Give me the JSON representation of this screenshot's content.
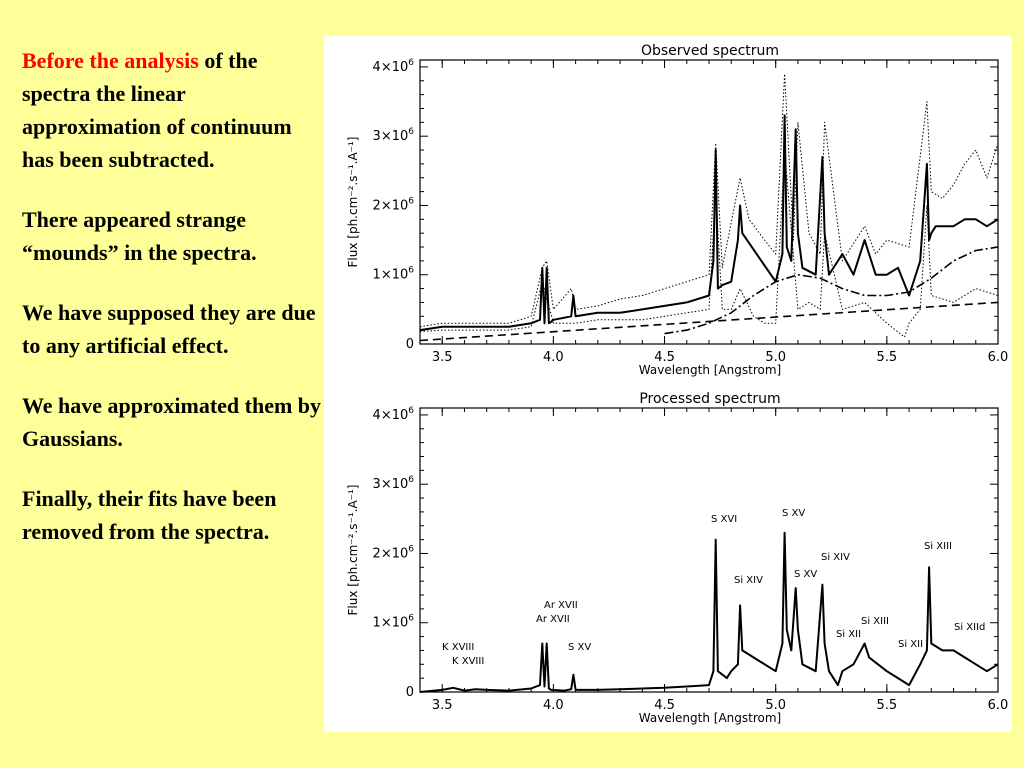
{
  "text": {
    "p1_red": "Before the analysis",
    "p1_rest": " of the spectra the linear approximation of continuum has been subtracted.",
    "p2": "There appeared strange “mounds” in the spectra.",
    "p3": "We have supposed they are due to any artificial effect.",
    "p4": "We have approximated them by Gaussians.",
    "p5": "Finally, their fits have been removed from the spectra."
  },
  "colors": {
    "background": "#ffff99",
    "highlight": "#ff0000",
    "panel": "#ffffff"
  },
  "chart_data": [
    {
      "type": "line",
      "title": "Observed spectrum",
      "xlabel": "Wavelength [Angstrom]",
      "ylabel": "Flux [ph.cm⁻².s⁻¹.A⁻¹]",
      "xlim": [
        3.4,
        6.0
      ],
      "ylim": [
        0,
        4100000
      ],
      "xticks": [
        "3.5",
        "4.0",
        "4.5",
        "5.0",
        "5.5",
        "6.0"
      ],
      "yticks": [
        {
          "base": "0",
          "exp": ""
        },
        {
          "base": "1×10",
          "exp": "6"
        },
        {
          "base": "2×10",
          "exp": "6"
        },
        {
          "base": "3×10",
          "exp": "6"
        },
        {
          "base": "4×10",
          "exp": "6"
        }
      ],
      "grid": false,
      "series": [
        {
          "style": "solid",
          "x": [
            3.4,
            3.5,
            3.6,
            3.7,
            3.8,
            3.9,
            3.94,
            3.95,
            3.96,
            3.97,
            3.98,
            3.99,
            4.0,
            4.05,
            4.08,
            4.09,
            4.1,
            4.2,
            4.3,
            4.4,
            4.5,
            4.6,
            4.7,
            4.72,
            4.73,
            4.74,
            4.76,
            4.8,
            4.83,
            4.84,
            4.85,
            5.0,
            5.03,
            5.04,
            5.05,
            5.07,
            5.09,
            5.1,
            5.12,
            5.18,
            5.21,
            5.22,
            5.24,
            5.3,
            5.35,
            5.4,
            5.45,
            5.5,
            5.55,
            5.6,
            5.65,
            5.68,
            5.69,
            5.7,
            5.72,
            5.8,
            5.85,
            5.9,
            5.95,
            6.0
          ],
          "y": [
            200000,
            250000,
            250000,
            250000,
            250000,
            300000,
            350000,
            1100000,
            300000,
            1100000,
            300000,
            320000,
            350000,
            380000,
            400000,
            700000,
            400000,
            450000,
            450000,
            500000,
            550000,
            600000,
            700000,
            1200000,
            2800000,
            800000,
            850000,
            900000,
            1500000,
            2000000,
            1600000,
            900000,
            1300000,
            3300000,
            1400000,
            1200000,
            3100000,
            1600000,
            1100000,
            1000000,
            2700000,
            1600000,
            1000000,
            1300000,
            1000000,
            1500000,
            1000000,
            1000000,
            1100000,
            700000,
            1200000,
            2600000,
            1500000,
            1600000,
            1700000,
            1700000,
            1800000,
            1800000,
            1700000,
            1800000
          ]
        },
        {
          "style": "dotted",
          "x": [
            3.4,
            3.5,
            3.6,
            3.7,
            3.8,
            3.9,
            3.95,
            3.97,
            4.0,
            4.08,
            4.1,
            4.2,
            4.3,
            4.4,
            4.5,
            4.6,
            4.7,
            4.73,
            4.76,
            4.84,
            4.88,
            4.95,
            5.0,
            5.04,
            5.08,
            5.1,
            5.15,
            5.2,
            5.22,
            5.3,
            5.4,
            5.45,
            5.5,
            5.6,
            5.68,
            5.7,
            5.75,
            5.8,
            5.85,
            5.9,
            5.95,
            6.0
          ],
          "y": [
            250000,
            300000,
            300000,
            300000,
            300000,
            400000,
            1100000,
            1200000,
            500000,
            800000,
            500000,
            550000,
            650000,
            700000,
            800000,
            900000,
            1000000,
            2900000,
            1100000,
            2400000,
            1800000,
            1500000,
            1300000,
            3900000,
            1500000,
            3200000,
            1600000,
            1300000,
            3200000,
            1200000,
            1700000,
            1300000,
            1500000,
            1400000,
            3500000,
            2200000,
            2100000,
            2300000,
            2600000,
            2800000,
            2400000,
            2900000
          ]
        },
        {
          "style": "dotted",
          "x": [
            3.4,
            3.5,
            3.6,
            3.7,
            3.8,
            3.9,
            3.95,
            4.0,
            4.05,
            4.1,
            4.2,
            4.3,
            4.4,
            4.5,
            4.6,
            4.7,
            4.73,
            4.76,
            4.8,
            4.84,
            4.9,
            4.95,
            5.0,
            5.04,
            5.1,
            5.15,
            5.2,
            5.22,
            5.3,
            5.4,
            5.5,
            5.58,
            5.6,
            5.65,
            5.68,
            5.7,
            5.8,
            5.9,
            6.0
          ],
          "y": [
            180000,
            200000,
            200000,
            200000,
            200000,
            250000,
            900000,
            300000,
            300000,
            300000,
            350000,
            350000,
            350000,
            400000,
            450000,
            500000,
            2200000,
            500000,
            500000,
            800000,
            400000,
            300000,
            300000,
            2800000,
            500000,
            600000,
            500000,
            1600000,
            500000,
            600000,
            300000,
            100000,
            300000,
            500000,
            2000000,
            700000,
            600000,
            800000,
            700000
          ]
        },
        {
          "style": "dashdot",
          "x": [
            4.5,
            4.6,
            4.7,
            4.8,
            4.9,
            5.0,
            5.1,
            5.2,
            5.3,
            5.4,
            5.5,
            5.6,
            5.7,
            5.8,
            5.9,
            6.0
          ],
          "y": [
            150000,
            200000,
            300000,
            450000,
            700000,
            900000,
            1000000,
            950000,
            800000,
            700000,
            700000,
            750000,
            950000,
            1200000,
            1350000,
            1400000
          ]
        },
        {
          "style": "dashed",
          "x": [
            3.4,
            6.0
          ],
          "y": [
            50000,
            600000
          ]
        }
      ]
    },
    {
      "type": "line",
      "title": "Processed spectrum",
      "xlabel": "Wavelength [Angstrom]",
      "ylabel": "Flux [ph.cm⁻².s⁻¹.A⁻¹]",
      "xlim": [
        3.4,
        6.0
      ],
      "ylim": [
        0,
        4100000
      ],
      "xticks": [
        "3.5",
        "4.0",
        "4.5",
        "5.0",
        "5.5",
        "6.0"
      ],
      "yticks": [
        {
          "base": "0",
          "exp": ""
        },
        {
          "base": "1×10",
          "exp": "6"
        },
        {
          "base": "2×10",
          "exp": "6"
        },
        {
          "base": "3×10",
          "exp": "6"
        },
        {
          "base": "4×10",
          "exp": "6"
        }
      ],
      "grid": false,
      "series": [
        {
          "style": "solid",
          "x": [
            3.4,
            3.5,
            3.55,
            3.6,
            3.65,
            3.7,
            3.8,
            3.9,
            3.94,
            3.95,
            3.96,
            3.97,
            3.98,
            3.99,
            4.05,
            4.08,
            4.09,
            4.1,
            4.2,
            4.3,
            4.4,
            4.5,
            4.6,
            4.7,
            4.72,
            4.73,
            4.74,
            4.78,
            4.8,
            4.83,
            4.84,
            4.85,
            4.9,
            5.0,
            5.03,
            5.04,
            5.05,
            5.07,
            5.09,
            5.1,
            5.12,
            5.18,
            5.21,
            5.22,
            5.24,
            5.28,
            5.3,
            5.35,
            5.4,
            5.42,
            5.5,
            5.55,
            5.6,
            5.65,
            5.68,
            5.69,
            5.7,
            5.75,
            5.8,
            5.85,
            5.9,
            5.95,
            6.0
          ],
          "y": [
            0,
            30000,
            60000,
            20000,
            40000,
            30000,
            20000,
            50000,
            100000,
            700000,
            80000,
            700000,
            50000,
            30000,
            20000,
            40000,
            250000,
            30000,
            30000,
            40000,
            50000,
            60000,
            80000,
            100000,
            300000,
            2200000,
            300000,
            200000,
            300000,
            400000,
            1250000,
            600000,
            500000,
            300000,
            700000,
            2300000,
            900000,
            600000,
            1500000,
            900000,
            400000,
            300000,
            1550000,
            700000,
            300000,
            100000,
            300000,
            400000,
            700000,
            500000,
            300000,
            200000,
            100000,
            400000,
            600000,
            1800000,
            700000,
            600000,
            600000,
            500000,
            400000,
            300000,
            400000
          ]
        }
      ],
      "annotations": [
        "K XVIII",
        "K XVIII",
        "Ar XVII",
        "Ar XVII",
        "S XV",
        "S XVI",
        "Si XIV",
        "S XV",
        "S XV",
        "Si XIV",
        "Si XIII",
        "Si XII",
        "Si XII",
        "Si XIII",
        "Si XIId"
      ]
    }
  ]
}
